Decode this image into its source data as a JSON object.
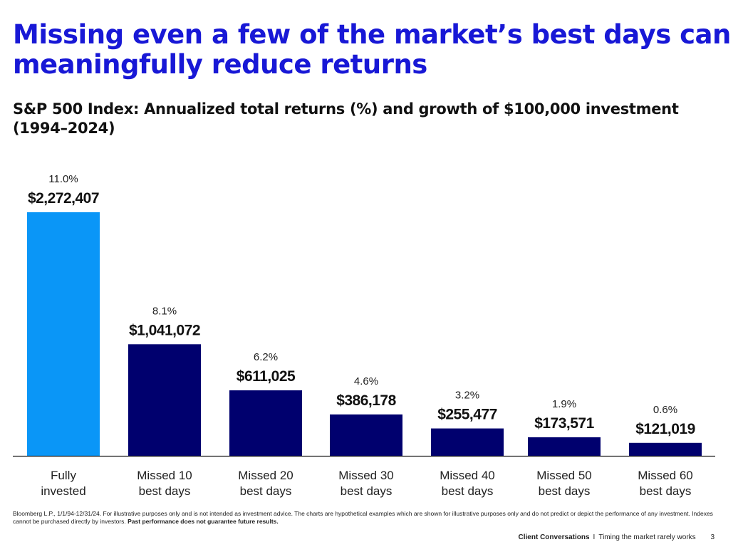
{
  "title": "Missing even a few of the market’s best days can meaningfully reduce returns",
  "subtitle": "S&P 500 Index: Annualized total returns (%) and growth of $100,000 investment (1994–2024)",
  "colors": {
    "title": "#1818d6",
    "highlight_bar": "#0a96f7",
    "bar": "#00006e",
    "axis": "#222222"
  },
  "chart_data": {
    "type": "bar",
    "categories": [
      [
        "Fully",
        "invested"
      ],
      [
        "Missed 10",
        "best days"
      ],
      [
        "Missed 20",
        "best days"
      ],
      [
        "Missed 30",
        "best days"
      ],
      [
        "Missed 40",
        "best days"
      ],
      [
        "Missed 50",
        "best days"
      ],
      [
        "Missed 60",
        "best days"
      ]
    ],
    "values": [
      2272407,
      1041072,
      611025,
      386178,
      255477,
      173571,
      121019
    ],
    "value_labels": [
      "$2,272,407",
      "$1,041,072",
      "$611,025",
      "$386,178",
      "$255,477",
      "$173,571",
      "$121,019"
    ],
    "return_labels": [
      "11.0%",
      "8.1%",
      "6.2%",
      "4.6%",
      "3.2%",
      "1.9%",
      "0.6%"
    ],
    "highlight_index": 0,
    "ylim": [
      0,
      2272407
    ],
    "grid": false,
    "legend": "none"
  },
  "footnote": {
    "text": "Bloomberg L.P., 1/1/94-12/31/24. For illustrative purposes only and is not intended as investment advice. The charts are hypothetical examples which are shown for illustrative purposes only and do not predict or depict the performance of any investment. Indexes cannot be purchased directly by investors.",
    "bold": "Past performance does not guarantee future results."
  },
  "footer": {
    "brand": "Client Conversations",
    "separator": "I",
    "topic": "Timing the market rarely works",
    "page": "3"
  }
}
